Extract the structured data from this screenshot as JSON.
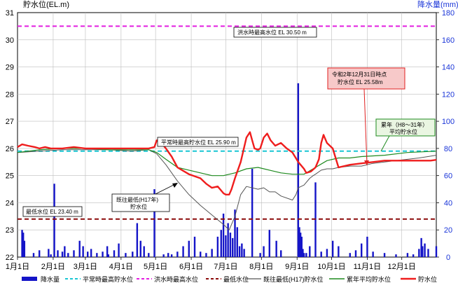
{
  "chart_data": {
    "type": "line",
    "ylabel_left": "貯水位(EL.m)",
    "ylabel_right": "降水量(mm)",
    "ylim_left": [
      22,
      31
    ],
    "ylim_right": [
      0,
      180
    ],
    "yticks_left": [
      "22",
      "23",
      "24",
      "25",
      "26",
      "27",
      "28",
      "29",
      "30",
      "31"
    ],
    "yticks_right": [
      "0",
      "20",
      "40",
      "60",
      "80",
      "100",
      "120",
      "140",
      "160",
      "180"
    ],
    "months": [
      "1月1日",
      "2月1日",
      "3月1日",
      "4月1日",
      "5月1日",
      "6月1日",
      "7月1日",
      "8月1日",
      "9月1日",
      "10月1日",
      "11月1日",
      "12月1日"
    ],
    "reference_levels": [
      {
        "name": "平常時最高貯水位",
        "value": 25.9,
        "color": "#19c6d3",
        "label": "平常時最高貯水位 EL 25.90 m"
      },
      {
        "name": "洪水時最高水位",
        "value": 30.5,
        "color": "#e21ee0",
        "label": "洪水時最高水位 EL 30.50 m"
      },
      {
        "name": "最低水位",
        "value": 23.4,
        "color": "#8b0a0a",
        "label": "最低水位 EL 23.40 m"
      }
    ],
    "series": [
      {
        "name": "貯水位",
        "color": "#ef1d1d",
        "x": [
          1,
          5,
          10,
          16,
          20,
          25,
          30,
          40,
          50,
          60,
          75,
          90,
          105,
          115,
          120,
          122,
          126,
          130,
          135,
          140,
          150,
          160,
          165,
          170,
          175,
          178,
          180,
          182,
          185,
          187,
          190,
          195,
          200,
          203,
          205,
          207,
          210,
          212,
          215,
          218,
          221,
          225,
          230,
          235,
          240,
          245,
          250,
          252,
          256,
          260,
          263,
          265,
          267,
          268,
          270,
          275,
          280,
          290,
          300,
          310,
          320,
          330,
          340,
          350,
          360,
          365
        ],
        "y": [
          26.05,
          26.15,
          26.1,
          26.05,
          26.0,
          26.05,
          26.0,
          26.0,
          26.05,
          26.0,
          26.0,
          26.0,
          26.0,
          26.0,
          26.05,
          26.3,
          26.2,
          26.0,
          25.7,
          25.3,
          25.05,
          24.9,
          24.7,
          24.55,
          24.6,
          24.45,
          24.35,
          24.3,
          24.3,
          24.5,
          24.9,
          25.5,
          26.4,
          26.6,
          26.3,
          26.0,
          25.95,
          26.0,
          26.4,
          26.55,
          26.3,
          26.1,
          26.2,
          26.0,
          25.85,
          25.5,
          25.25,
          25.1,
          25.15,
          25.3,
          25.6,
          26.2,
          26.5,
          26.4,
          26.2,
          26.0,
          25.3,
          25.4,
          25.45,
          25.5,
          25.55,
          25.55,
          25.55,
          25.55,
          25.55,
          25.58
        ]
      },
      {
        "name": "累年平均貯水位",
        "color": "#1e8a1e",
        "x": [
          1,
          20,
          40,
          60,
          80,
          100,
          115,
          122,
          130,
          140,
          150,
          160,
          170,
          180,
          190,
          200,
          210,
          220,
          230,
          240,
          250,
          260,
          270,
          280,
          290,
          300,
          320,
          340,
          365
        ],
        "y": [
          25.85,
          25.95,
          26.0,
          26.0,
          25.95,
          25.95,
          25.95,
          25.85,
          25.6,
          25.3,
          25.2,
          25.1,
          25.0,
          25.0,
          25.1,
          25.25,
          25.3,
          25.2,
          25.1,
          25.05,
          25.05,
          25.3,
          25.55,
          25.65,
          25.65,
          25.7,
          25.75,
          25.85,
          25.9
        ]
      },
      {
        "name": "既往最低(H17)貯水位",
        "color": "#555555",
        "x": [
          1,
          20,
          40,
          60,
          80,
          100,
          115,
          122,
          130,
          140,
          150,
          160,
          170,
          180,
          185,
          190,
          195,
          200,
          210,
          215,
          220,
          225,
          230,
          240,
          243,
          245,
          250,
          255,
          258,
          260,
          265,
          270,
          275,
          280,
          290,
          300,
          310,
          320,
          330,
          340,
          350,
          365
        ],
        "y": [
          25.85,
          25.9,
          25.95,
          25.95,
          25.95,
          25.9,
          25.95,
          25.8,
          25.4,
          24.8,
          24.3,
          23.9,
          23.55,
          23.2,
          23.0,
          23.5,
          24.3,
          24.6,
          24.5,
          24.55,
          24.4,
          24.4,
          24.25,
          24.1,
          24.3,
          24.55,
          24.65,
          24.9,
          25.0,
          25.05,
          25.2,
          25.25,
          25.25,
          25.3,
          25.35,
          25.35,
          25.45,
          25.5,
          25.55,
          25.6,
          25.65,
          25.75
        ]
      }
    ],
    "precipitation": {
      "name": "降水量",
      "color": "#1414c8",
      "x": [
        5,
        6,
        7,
        15,
        20,
        28,
        30,
        33,
        36,
        40,
        42,
        45,
        50,
        55,
        58,
        62,
        65,
        70,
        75,
        79,
        80,
        85,
        89,
        95,
        101,
        105,
        108,
        111,
        115,
        120,
        128,
        132,
        135,
        140,
        145,
        150,
        155,
        160,
        165,
        170,
        175,
        178,
        180,
        182,
        184,
        186,
        188,
        190,
        192,
        194,
        196,
        198,
        205,
        212,
        215,
        220,
        226,
        230,
        245,
        246,
        247,
        248,
        249,
        250,
        252,
        255,
        260,
        265,
        270,
        275,
        280,
        290,
        295,
        300,
        305,
        310,
        320,
        330,
        340,
        345,
        350,
        352,
        353,
        355,
        358,
        365
      ],
      "y": [
        20,
        18,
        12,
        3,
        5,
        6,
        2,
        54,
        5,
        4,
        8,
        3,
        5,
        12,
        8,
        4,
        6,
        3,
        4,
        8,
        2,
        5,
        10,
        3,
        4,
        25,
        12,
        8,
        3,
        50,
        2,
        3,
        2,
        4,
        8,
        12,
        15,
        4,
        3,
        6,
        15,
        20,
        32,
        16,
        25,
        18,
        14,
        35,
        22,
        8,
        10,
        6,
        65,
        3,
        8,
        20,
        12,
        5,
        128,
        22,
        18,
        15,
        6,
        3,
        3,
        8,
        55,
        4,
        6,
        12,
        8,
        3,
        5,
        10,
        15,
        4,
        3,
        2,
        3,
        2,
        6,
        14,
        8,
        10,
        6,
        8
      ]
    },
    "annotations": [
      {
        "text": "洪水時最高水位 EL 30.50 m"
      },
      {
        "text": "令和2年12月31日時点"
      },
      {
        "text": "貯水位 EL 25.58m"
      },
      {
        "text": "累年（H8～31年）"
      },
      {
        "text": "平均貯水位"
      },
      {
        "text": "平常時最高貯水位 EL 25.90 m"
      },
      {
        "text": "既往最低(H17年)"
      },
      {
        "text": "貯水位"
      },
      {
        "text": "最低水位 EL 23.40 m"
      }
    ],
    "legend": [
      "降水量",
      "平常時最高貯水位",
      "洪水時最高水位",
      "最低水位",
      "既往最低(H17)貯水位",
      "累年平均貯水位",
      "貯水位"
    ],
    "legend_position": "bottom",
    "grid": true
  }
}
